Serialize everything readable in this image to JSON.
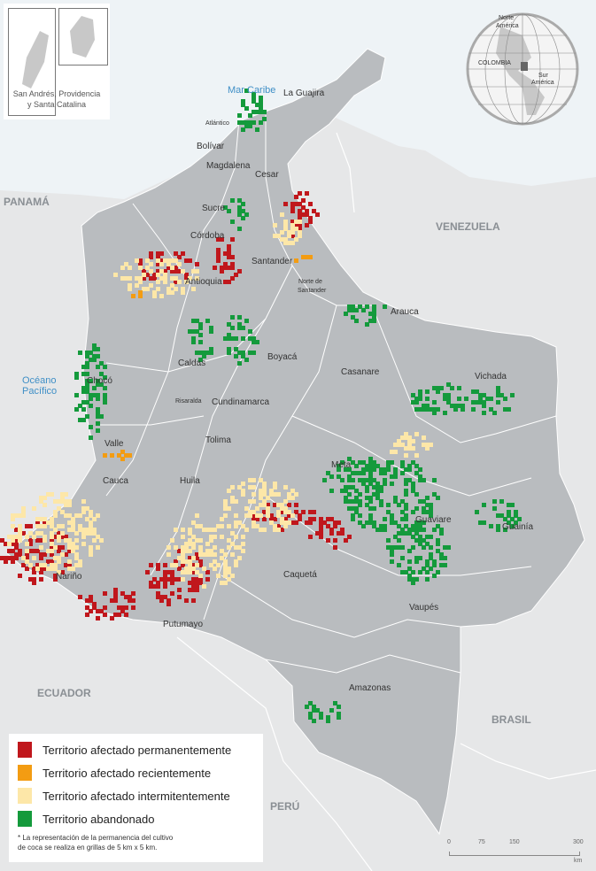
{
  "inset": {
    "caption_line1": "San Andrés, Providencia",
    "caption_line2": "y Santa Catalina"
  },
  "globe": {
    "labels": [
      "Norte",
      "América",
      "COLOMBIA",
      "Sur",
      "América"
    ]
  },
  "seas": {
    "caribbean": "Mar Caribe",
    "pacific_line1": "Océano",
    "pacific_line2": "Pacífico"
  },
  "countries": {
    "panama": "PANAMÁ",
    "venezuela": "VENEZUELA",
    "ecuador": "ECUADOR",
    "peru": "PERÚ",
    "brasil": "BRASIL"
  },
  "departments": [
    "La Guajira",
    "Atlántico",
    "Bolívar",
    "Magdalena",
    "Cesar",
    "Sucre",
    "Córdoba",
    "Norte de",
    "Santander",
    "Santander",
    "Antioquia",
    "Arauca",
    "Chocó",
    "Boyacá",
    "Casanare",
    "Vichada",
    "Caldas",
    "Risaralda",
    "Cundinamarca",
    "Tolima",
    "Valle",
    "Meta",
    "Cauca",
    "Huila",
    "Guaviare",
    "Guainía",
    "Nariño",
    "Caquetá",
    "Vaupés",
    "Putumayo",
    "Amazonas"
  ],
  "legend": {
    "items": [
      {
        "label": "Territorio afectado permanentemente",
        "color": "#c0171c"
      },
      {
        "label": "Territorio afectado recientemente",
        "color": "#f39c12"
      },
      {
        "label": "Territorio afectado intermitentemente",
        "color": "#fde7a8"
      },
      {
        "label": "Territorio abandonado",
        "color": "#149a3c"
      }
    ],
    "note_line1": "* La representación de la permanencia del cultivo",
    "note_line2": "de coca se realiza en grillas de 5 km x 5 km."
  },
  "scale": {
    "ticks": [
      "0",
      "75",
      "150",
      "300"
    ],
    "unit": "km"
  },
  "colors": {
    "land": "#b9bcbf",
    "neighbor": "#e6e7e8",
    "sea": "#eef3f6"
  }
}
